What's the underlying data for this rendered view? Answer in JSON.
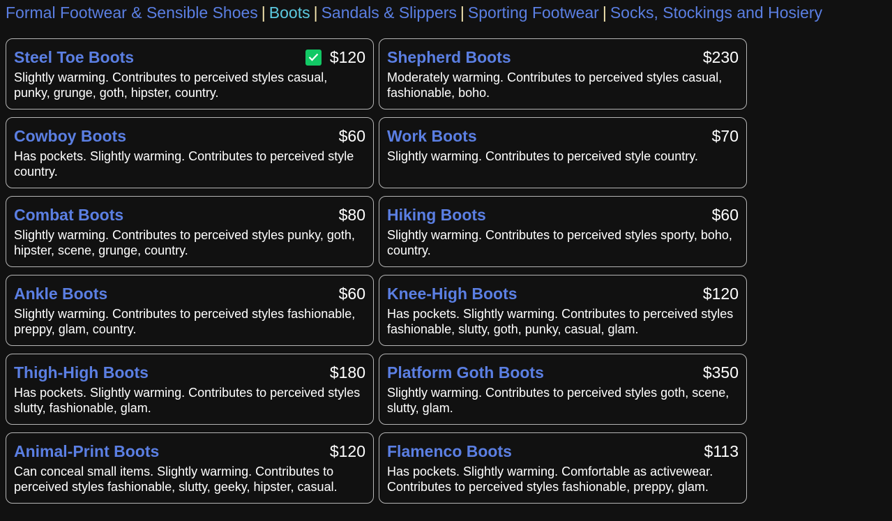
{
  "nav": {
    "items": [
      {
        "label": "Formal Footwear & Sensible Shoes",
        "active": false
      },
      {
        "label": "Boots",
        "active": true
      },
      {
        "label": "Sandals & Slippers",
        "active": false
      },
      {
        "label": "Sporting Footwear",
        "active": false
      },
      {
        "label": "Socks, Stockings and Hosiery",
        "active": false
      }
    ],
    "separator": "|"
  },
  "items": [
    {
      "name": "Steel Toe Boots",
      "price": "$120",
      "selected": true,
      "description": "Slightly warming. Contributes to perceived styles casual, punky, grunge, goth, hipster, country."
    },
    {
      "name": "Shepherd Boots",
      "price": "$230",
      "selected": false,
      "description": "Moderately warming. Contributes to perceived styles casual, fashionable, boho."
    },
    {
      "name": "Cowboy Boots",
      "price": "$60",
      "selected": false,
      "description": "Has pockets. Slightly warming. Contributes to perceived style country."
    },
    {
      "name": "Work Boots",
      "price": "$70",
      "selected": false,
      "description": "Slightly warming. Contributes to perceived style country."
    },
    {
      "name": "Combat Boots",
      "price": "$80",
      "selected": false,
      "description": "Slightly warming. Contributes to perceived styles punky, goth, hipster, scene, grunge, country."
    },
    {
      "name": "Hiking Boots",
      "price": "$60",
      "selected": false,
      "description": "Slightly warming. Contributes to perceived styles sporty, boho, country."
    },
    {
      "name": "Ankle Boots",
      "price": "$60",
      "selected": false,
      "description": "Slightly warming. Contributes to perceived styles fashionable, preppy, glam, country."
    },
    {
      "name": "Knee-High Boots",
      "price": "$120",
      "selected": false,
      "description": "Has pockets. Slightly warming. Contributes to perceived styles fashionable, slutty, goth, punky, casual, glam."
    },
    {
      "name": "Thigh-High Boots",
      "price": "$180",
      "selected": false,
      "description": "Has pockets. Slightly warming. Contributes to perceived styles slutty, fashionable, glam."
    },
    {
      "name": "Platform Goth Boots",
      "price": "$350",
      "selected": false,
      "description": "Slightly warming. Contributes to perceived styles goth, scene, slutty, glam."
    },
    {
      "name": "Animal-Print Boots",
      "price": "$120",
      "selected": false,
      "description": "Can conceal small items. Slightly warming. Contributes to perceived styles fashionable, slutty, geeky, hipster, casual."
    },
    {
      "name": "Flamenco Boots",
      "price": "$113",
      "selected": false,
      "description": "Has pockets. Slightly warming. Comfortable as activewear. Contributes to perceived styles fashionable, preppy, glam."
    }
  ],
  "colors": {
    "link": "#5b7fe3",
    "active_link": "#5cc9e0",
    "check": "#12c865",
    "background": "#111111"
  }
}
